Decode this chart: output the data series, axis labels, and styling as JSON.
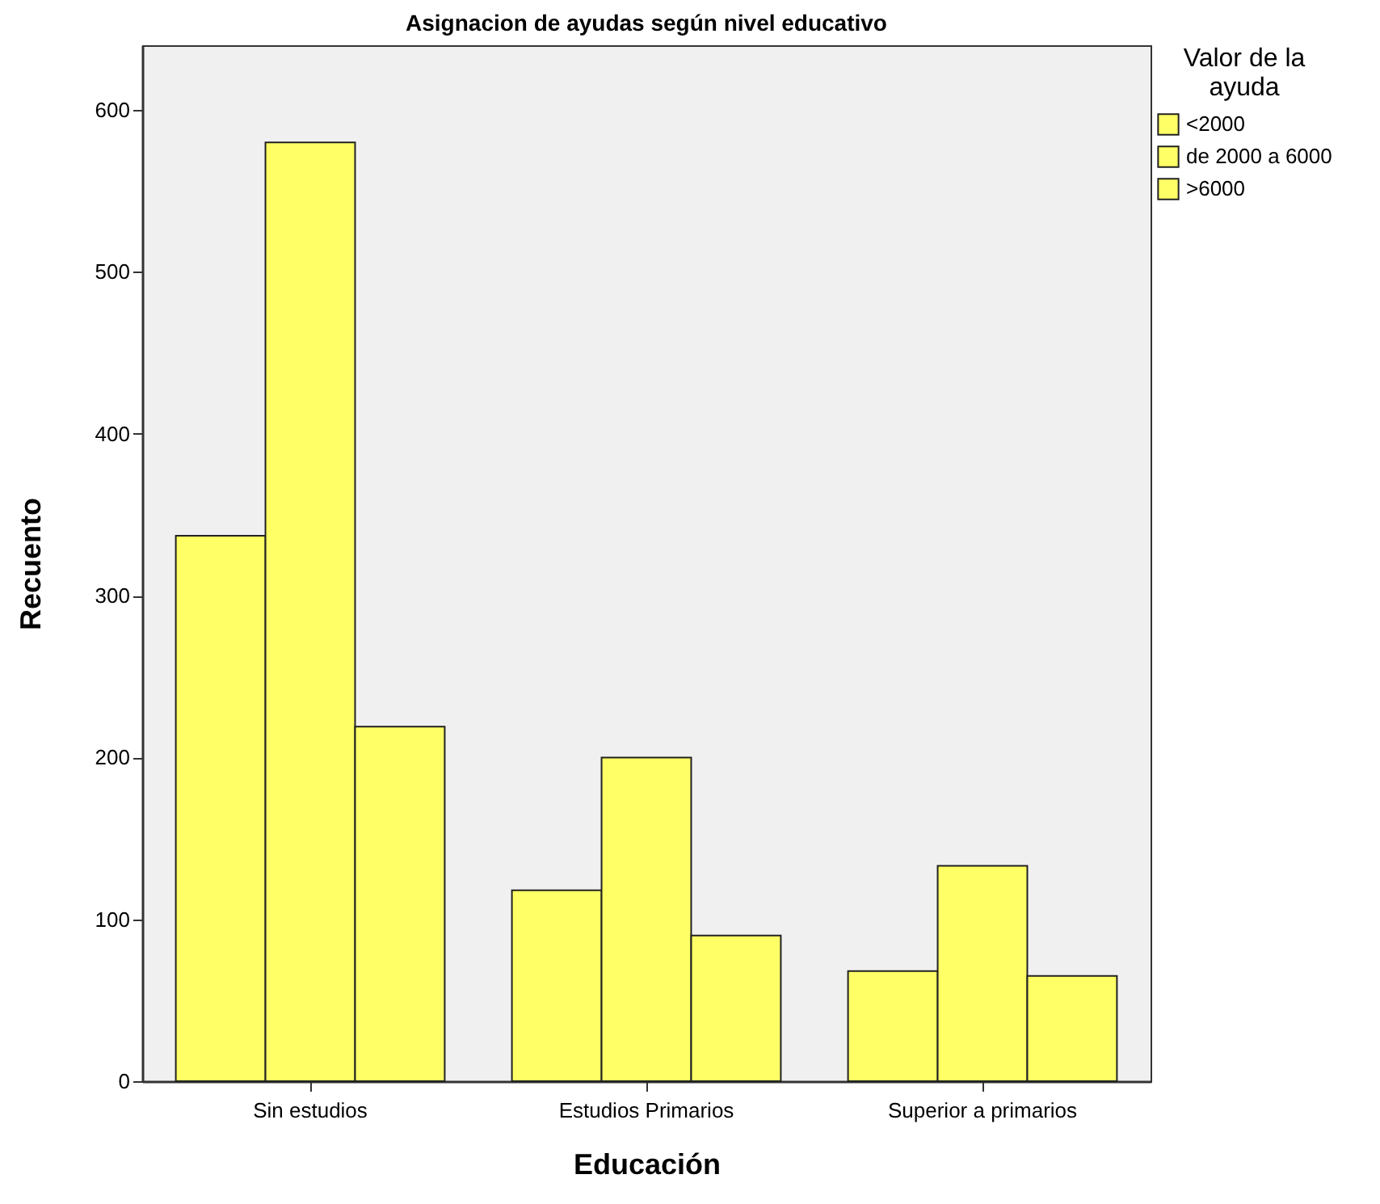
{
  "chart_data": {
    "type": "bar",
    "title": "Asignacion de ayudas según nivel educativo",
    "xlabel": "Educación",
    "ylabel": "Recuento",
    "legend_title": "Valor de la ayuda",
    "categories": [
      "Sin estudios",
      "Estudios Primarios",
      "Superior a primarios"
    ],
    "series": [
      {
        "name": "<2000",
        "color": "#ffff66",
        "values": [
          337,
          118,
          68
        ]
      },
      {
        "name": "de 2000 a 6000",
        "color": "#ffff66",
        "values": [
          580,
          200,
          133
        ]
      },
      {
        "name": ">6000",
        "color": "#ffff66",
        "values": [
          219,
          90,
          65
        ]
      }
    ],
    "ylim": [
      0,
      640
    ],
    "yticks": [
      0,
      100,
      200,
      300,
      400,
      500,
      600
    ],
    "grid": false,
    "legend": "top right"
  }
}
